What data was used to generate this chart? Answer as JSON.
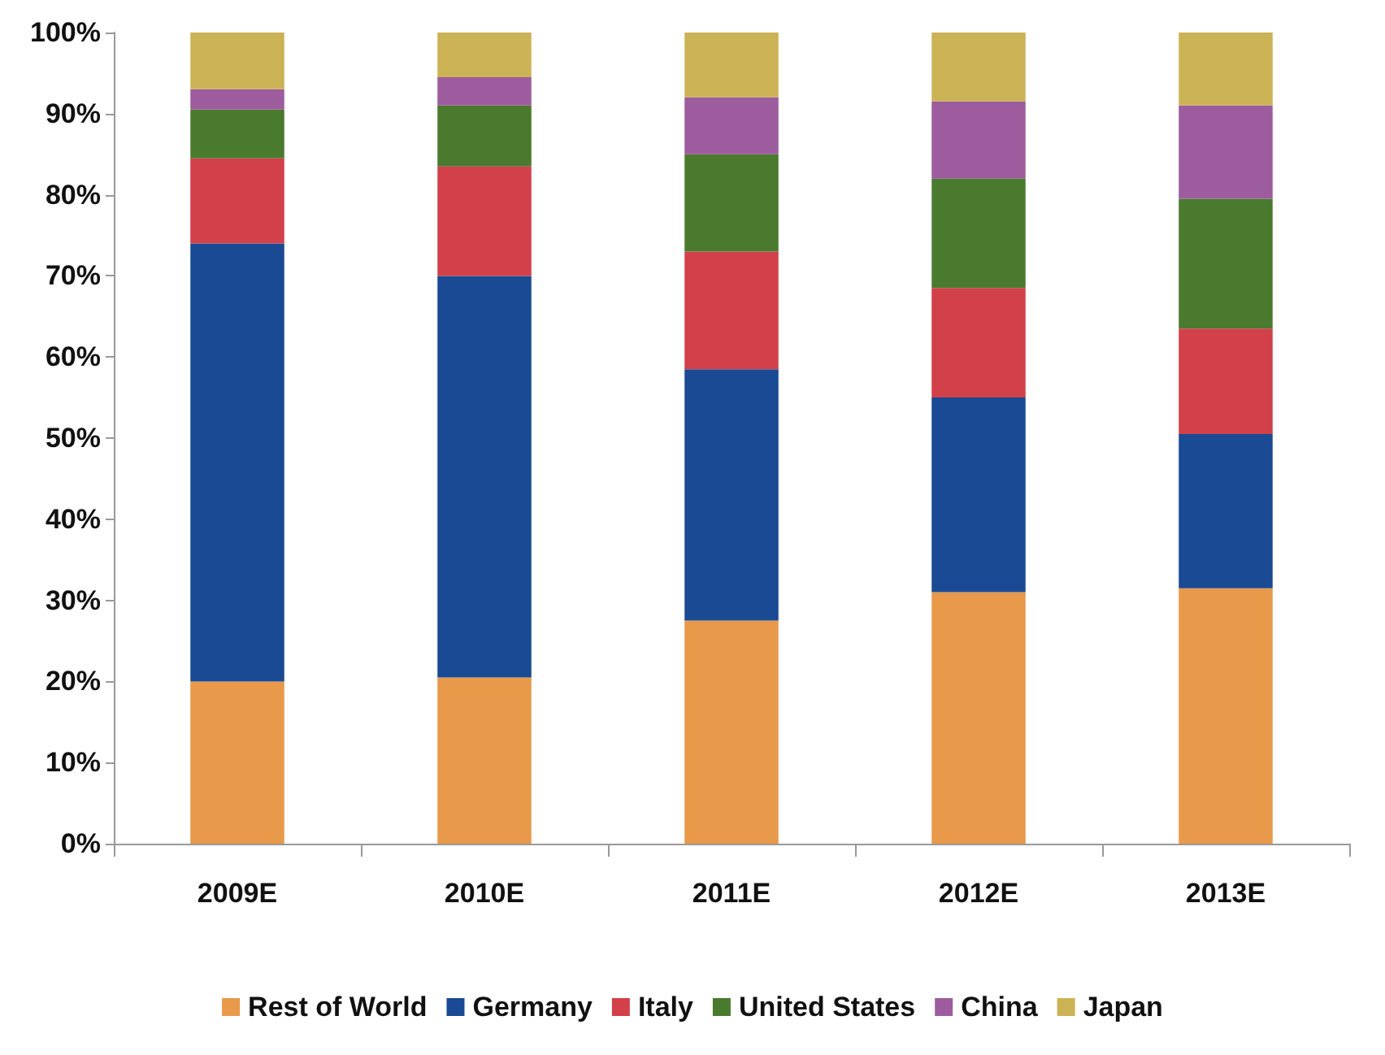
{
  "chart_data": {
    "type": "bar",
    "stacked": true,
    "categories": [
      "2009E",
      "2010E",
      "2011E",
      "2012E",
      "2013E"
    ],
    "series": [
      {
        "name": "Rest of World",
        "color": "#e8994a",
        "values": [
          20,
          20.5,
          27.5,
          31,
          31.5
        ]
      },
      {
        "name": "Germany",
        "color": "#1a4a94",
        "values": [
          54,
          49.5,
          31,
          24,
          19
        ]
      },
      {
        "name": "Italy",
        "color": "#d2404a",
        "values": [
          10.5,
          13.5,
          14.5,
          13.5,
          13
        ]
      },
      {
        "name": "United States",
        "color": "#4a7a2e",
        "values": [
          6,
          7.5,
          12,
          13.5,
          16
        ]
      },
      {
        "name": "China",
        "color": "#9c5c9e",
        "values": [
          2.5,
          3.5,
          7,
          9.5,
          11.5
        ]
      },
      {
        "name": "Japan",
        "color": "#cbb355",
        "values": [
          7,
          5.5,
          8,
          8.5,
          9
        ]
      }
    ],
    "ylim": [
      0,
      100
    ],
    "yticks": [
      {
        "value": 0,
        "label": "0%"
      },
      {
        "value": 10,
        "label": "10%"
      },
      {
        "value": 20,
        "label": "20%"
      },
      {
        "value": 30,
        "label": "30%"
      },
      {
        "value": 40,
        "label": "40%"
      },
      {
        "value": 50,
        "label": "50%"
      },
      {
        "value": 60,
        "label": "60%"
      },
      {
        "value": 70,
        "label": "70%"
      },
      {
        "value": 80,
        "label": "80%"
      },
      {
        "value": 90,
        "label": "90%"
      },
      {
        "value": 100,
        "label": "100%"
      }
    ],
    "grid": false,
    "legend": "bottom"
  }
}
